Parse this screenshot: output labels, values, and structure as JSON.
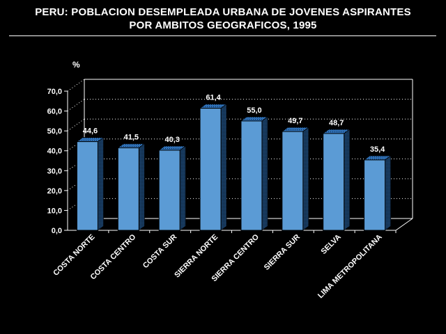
{
  "title_line1": "PERU: POBLACION DESEMPLEADA URBANA DE JOVENES ASPIRANTES",
  "title_line2": "POR AMBITOS GEOGRAFICOS, 1995",
  "colors": {
    "background": "#000000",
    "bar_front": "#5b9bd5",
    "bar_side": "#1f4e79",
    "bar_top": "#2e6fb5",
    "text": "#ffffff"
  },
  "chart_data": {
    "type": "bar",
    "title": "PERU: POBLACION DESEMPLEADA URBANA DE JOVENES ASPIRANTES POR AMBITOS GEOGRAFICOS, 1995",
    "unit_label": "%",
    "categories": [
      "COSTA NORTE",
      "COSTA CENTRO",
      "COSTA SUR",
      "SIERRA NORTE",
      "SIERRA CENTRO",
      "SIERRA SUR",
      "SELVA",
      "LIMA METROPOLITANA"
    ],
    "values": [
      44.6,
      41.5,
      40.3,
      61.4,
      55.0,
      49.7,
      48.7,
      35.4
    ],
    "value_labels": [
      "44,6",
      "41,5",
      "40,3",
      "61,4",
      "55,0",
      "49,7",
      "48,7",
      "35,4"
    ],
    "yticks": [
      "0,0",
      "10,0",
      "20,0",
      "30,0",
      "40,0",
      "50,0",
      "60,0",
      "70,0"
    ],
    "ylim": [
      0,
      70
    ],
    "grid": true,
    "three_d": true
  }
}
